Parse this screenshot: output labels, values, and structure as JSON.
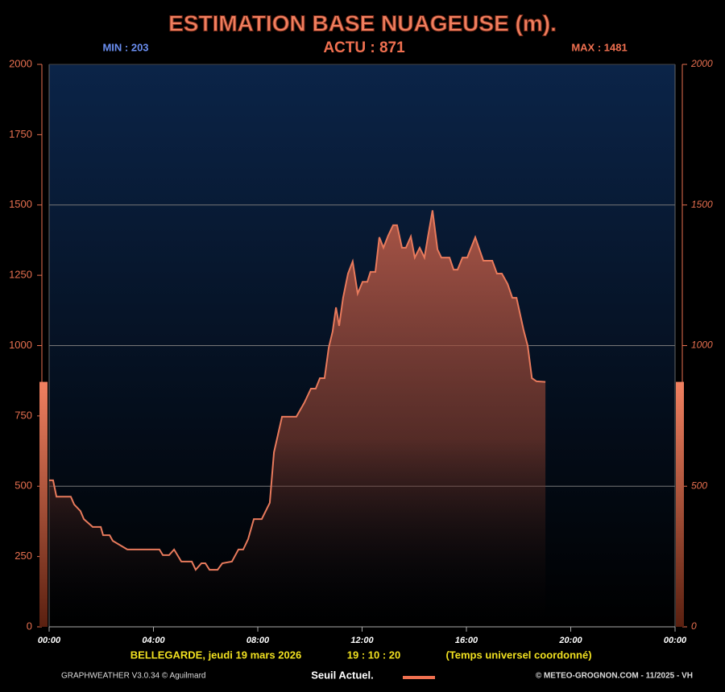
{
  "chart_data": {
    "type": "area",
    "title": "ESTIMATION BASE NUAGEUSE (m).",
    "min_text": "MIN : 203",
    "current_text": "ACTU : 871",
    "max_text": "MAX : 1481",
    "current": 871,
    "current_color": "#f07050",
    "x": [
      0,
      0.15,
      0.28,
      0.83,
      0.96,
      1.2,
      1.33,
      1.67,
      1.98,
      2.07,
      2.32,
      2.44,
      3.0,
      4.23,
      4.36,
      4.6,
      4.79,
      5.07,
      5.47,
      5.62,
      5.84,
      5.99,
      6.15,
      6.46,
      6.64,
      7.01,
      7.26,
      7.44,
      7.63,
      7.85,
      8.15,
      8.46,
      8.62,
      8.93,
      9.48,
      9.79,
      10.04,
      10.22,
      10.38,
      10.56,
      10.72,
      10.87,
      11.0,
      11.12,
      11.27,
      11.46,
      11.64,
      11.83,
      12.02,
      12.2,
      12.32,
      12.51,
      12.66,
      12.82,
      13.0,
      13.19,
      13.34,
      13.53,
      13.68,
      13.87,
      14.02,
      14.21,
      14.39,
      14.52,
      14.7,
      14.89,
      15.04,
      15.35,
      15.51,
      15.66,
      15.85,
      16.03,
      16.34,
      16.65,
      16.99,
      17.17,
      17.36,
      17.58,
      17.76,
      17.92,
      18.19,
      18.35,
      18.51,
      18.69,
      19.03
    ],
    "series": [
      {
        "color": "#e87a5c",
        "values": [
          521,
          521,
          463,
          463,
          435,
          412,
          383,
          355,
          355,
          326,
          326,
          306,
          275,
          275,
          255,
          255,
          275,
          232,
          232,
          203,
          226,
          226,
          203,
          203,
          226,
          232,
          275,
          275,
          312,
          383,
          383,
          441,
          621,
          747,
          747,
          798,
          847,
          847,
          884,
          884,
          993,
          1050,
          1136,
          1070,
          1170,
          1256,
          1299,
          1185,
          1227,
          1227,
          1262,
          1262,
          1385,
          1348,
          1391,
          1428,
          1428,
          1348,
          1348,
          1388,
          1313,
          1348,
          1313,
          1385,
          1481,
          1342,
          1313,
          1313,
          1270,
          1270,
          1313,
          1313,
          1385,
          1302,
          1302,
          1256,
          1256,
          1219,
          1170,
          1170,
          1056,
          999,
          884,
          873,
          871
        ]
      }
    ],
    "xlim": [
      0,
      24
    ],
    "xticks": [
      {
        "value": 0,
        "label": "00:00"
      },
      {
        "value": 4,
        "label": "04:00"
      },
      {
        "value": 8,
        "label": "08:00"
      },
      {
        "value": 12,
        "label": "12:00"
      },
      {
        "value": 16,
        "label": "16:00"
      },
      {
        "value": 20,
        "label": "20:00"
      },
      {
        "value": 24,
        "label": "00:00"
      }
    ],
    "ylim": [
      0,
      2000
    ],
    "yticks": [
      0,
      250,
      500,
      750,
      1000,
      1250,
      1500,
      1750,
      2000
    ],
    "y2lim": [
      0,
      2000
    ],
    "y2ticks": [
      0,
      500,
      1000,
      1500,
      2000
    ],
    "grid_lines": [
      500,
      1000,
      1500
    ],
    "location_date": "BELLEGARDE, jeudi 19 mars 2026",
    "time": "19 : 10 : 20",
    "timezone": "(Temps universel coordonné)",
    "software": "GRAPHWEATHER V3.0.34 © Aguilmard",
    "legend_label": "Seuil Actuel.",
    "copyright": "© METEO-GROGNON.COM - 11/2025 - VH"
  }
}
